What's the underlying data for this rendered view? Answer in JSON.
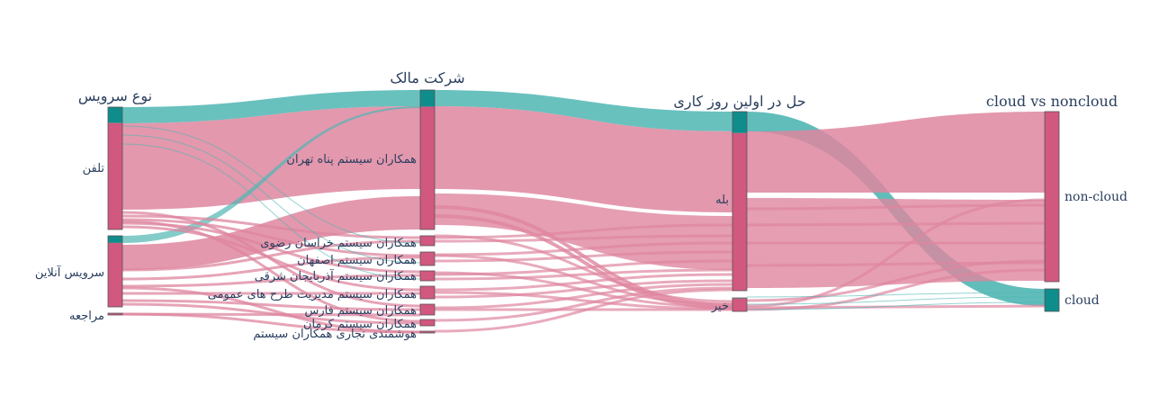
{
  "colors": {
    "pink": "#d1587e",
    "pink_link": "#de869f",
    "teal": "#0f8c8c",
    "teal_link": "#4fb6b3",
    "node_border": "#555555",
    "text": "#2a3f5f"
  },
  "diagram": {
    "type": "parallel-categories",
    "dimensions": [
      {
        "header": "نوع سرویس",
        "categories": [
          {
            "label": "تلفن",
            "teal": 0.13,
            "pink": 0.87
          },
          {
            "label": "سرویس آنلاین",
            "teal": 0.1,
            "pink": 0.9
          },
          {
            "label": "مراجعه",
            "teal": 0.0,
            "pink": 1.0
          }
        ]
      },
      {
        "header": "شرکت مالک",
        "categories": [
          {
            "label": "همکاران سیستم پناه تهران",
            "teal": 0.12,
            "pink": 0.88
          },
          {
            "label": "همکاران سیستم خراسان رضوی",
            "teal": 0.0,
            "pink": 1.0
          },
          {
            "label": "همکاران سیستم اصفهان",
            "teal": 0.0,
            "pink": 1.0
          },
          {
            "label": "همکاران سیستم آذربایجان شرقی",
            "teal": 0.0,
            "pink": 1.0
          },
          {
            "label": "همکاران سیستم مدیریت طرح های عمومی",
            "teal": 0.0,
            "pink": 1.0
          },
          {
            "label": "همکاران سیستم فارس",
            "teal": 0.0,
            "pink": 1.0
          },
          {
            "label": "همکاران سیستم کرمان",
            "teal": 0.0,
            "pink": 1.0
          },
          {
            "label": "هوشمندی تجاری همکاران سیستم",
            "teal": 0.0,
            "pink": 1.0
          }
        ]
      },
      {
        "header": "حل در اولین روز کاری",
        "categories": [
          {
            "label": "بله",
            "teal": 0.12,
            "pink": 0.88
          },
          {
            "label": "خیر",
            "teal": 0.05,
            "pink": 0.95
          }
        ]
      },
      {
        "header": "cloud vs noncloud",
        "categories": [
          {
            "label": "non-cloud",
            "teal": 0.0,
            "pink": 1.0
          },
          {
            "label": "cloud",
            "teal": 1.0,
            "pink": 0.0
          }
        ]
      }
    ]
  }
}
